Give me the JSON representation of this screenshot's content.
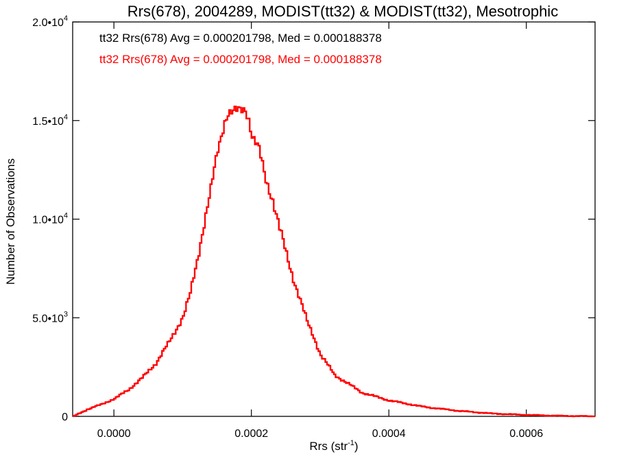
{
  "chart_data": {
    "type": "line",
    "title": "Rrs(678), 2004289, MODIST(tt32) & MODIST(tt32), Mesotrophic",
    "xlabel_base": "Rrs (str",
    "xlabel_sup": "-1",
    "xlabel_end": ")",
    "ylabel": "Number of Observations",
    "xlim": [
      -6e-05,
      0.0007
    ],
    "ylim": [
      0,
      20000
    ],
    "x_ticks": [
      {
        "value": 0.0,
        "label": "0.0000"
      },
      {
        "value": 0.0002,
        "label": "0.0002"
      },
      {
        "value": 0.0004,
        "label": "0.0004"
      },
      {
        "value": 0.0006,
        "label": "0.0006"
      }
    ],
    "y_ticks": [
      {
        "value": 0,
        "mant": "0",
        "exp": ""
      },
      {
        "value": 5000,
        "mant": "5.0•10",
        "exp": "3"
      },
      {
        "value": 10000,
        "mant": "1.0•10",
        "exp": "4"
      },
      {
        "value": 15000,
        "mant": "1.5•10",
        "exp": "4"
      },
      {
        "value": 20000,
        "mant": "2.0•10",
        "exp": "4"
      }
    ],
    "legend": [
      {
        "text": "tt32 Rrs(678) Avg = 0.000201798, Med = 0.000188378",
        "color": "#000000"
      },
      {
        "text": "tt32 Rrs(678) Avg = 0.000201798, Med = 0.000188378",
        "color": "#ff0000"
      }
    ],
    "series": [
      {
        "color": "#ff0000",
        "x": [
          -6e-05,
          -4e-05,
          -2e-05,
          0.0,
          2e-05,
          4e-05,
          6e-05,
          8e-05,
          0.0001,
          0.00011,
          0.00012,
          0.00013,
          0.00014,
          0.00015,
          0.00016,
          0.000165,
          0.00017,
          0.00018,
          0.00019,
          0.000195,
          0.0002,
          0.00021,
          0.00022,
          0.00023,
          0.00024,
          0.00025,
          0.00026,
          0.00027,
          0.00028,
          0.00029,
          0.0003,
          0.00032,
          0.00034,
          0.00036,
          0.0004,
          0.00045,
          0.0005,
          0.00055,
          0.0006,
          0.00065,
          0.0007
        ],
        "y": [
          0,
          350,
          600,
          900,
          1350,
          1950,
          2700,
          3800,
          5100,
          6200,
          7900,
          9800,
          11500,
          13500,
          15000,
          15400,
          15400,
          15500,
          15600,
          15100,
          14200,
          13500,
          12000,
          11000,
          9500,
          8200,
          7000,
          5900,
          4800,
          4000,
          3100,
          2100,
          1650,
          1200,
          800,
          480,
          280,
          140,
          70,
          25,
          0
        ]
      },
      {
        "color": "#ff0000",
        "x": [
          -6e-05,
          -4e-05,
          -2e-05,
          0.0,
          2e-05,
          4e-05,
          6e-05,
          8e-05,
          0.0001,
          0.00011,
          0.00012,
          0.00013,
          0.00014,
          0.00015,
          0.00016,
          0.000165,
          0.00017,
          0.00018,
          0.00019,
          0.000195,
          0.0002,
          0.00021,
          0.00022,
          0.00023,
          0.00024,
          0.00025,
          0.00026,
          0.00027,
          0.00028,
          0.00029,
          0.0003,
          0.00032,
          0.00034,
          0.00036,
          0.0004,
          0.00045,
          0.0005,
          0.00055,
          0.0006,
          0.00065,
          0.0007
        ],
        "y": [
          0,
          350,
          600,
          900,
          1350,
          1950,
          2700,
          3800,
          5100,
          6200,
          7900,
          9800,
          11500,
          13500,
          15000,
          15400,
          15400,
          15500,
          15600,
          15100,
          14200,
          13500,
          12000,
          11000,
          9500,
          8200,
          7000,
          5900,
          4800,
          4000,
          3100,
          2100,
          1650,
          1200,
          800,
          480,
          280,
          140,
          70,
          25,
          0
        ]
      }
    ]
  }
}
